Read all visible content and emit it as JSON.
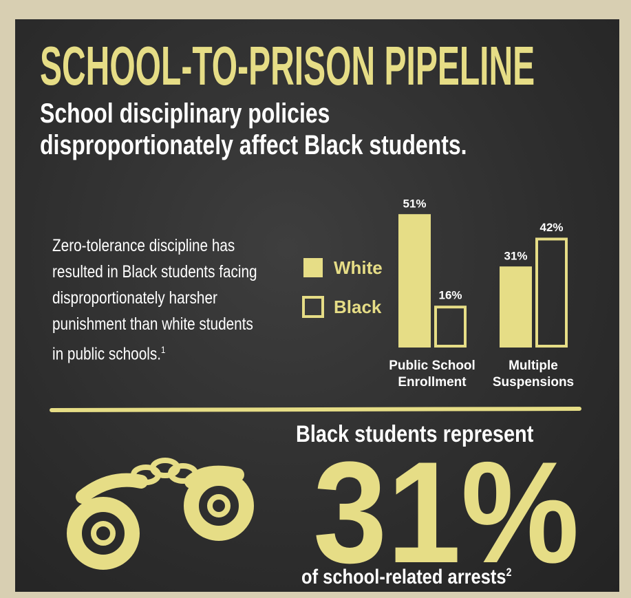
{
  "header": {
    "title": "SCHOOL-TO-PRISON PIPELINE",
    "subtitle": "School disciplinary policies disproportionately affect Black students."
  },
  "body": {
    "text": "Zero-tolerance discipline has resulted in Black students facing disproportionately harsher punishment than white students in public schools.",
    "footnote": "1"
  },
  "chart_data": {
    "type": "bar",
    "categories": [
      "Public School Enrollment",
      "Multiple Suspensions"
    ],
    "series": [
      {
        "name": "White",
        "color": "#e6dd86",
        "style": "filled",
        "values": [
          51,
          31
        ],
        "value_labels": [
          "51%",
          "31%"
        ]
      },
      {
        "name": "Black",
        "color": "#e6dd86",
        "style": "outline",
        "values": [
          16,
          42
        ],
        "value_labels": [
          "16%",
          "42%"
        ]
      }
    ]
  },
  "stat": {
    "heading": "Black students represent",
    "value": "31%",
    "caption": "of school-related arrests",
    "footnote": "2"
  }
}
